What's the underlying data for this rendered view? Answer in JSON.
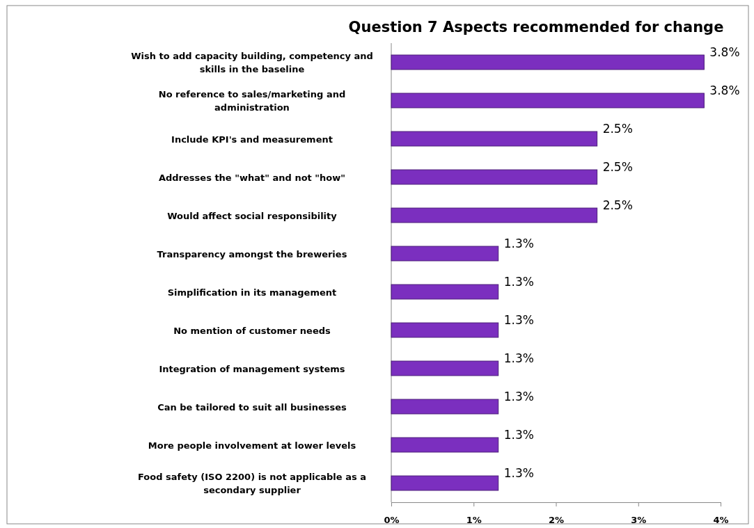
{
  "chart_data": {
    "type": "bar",
    "orientation": "horizontal",
    "title": "Question 7 Aspects recommended for change",
    "categories": [
      "Wish to add capacity building, competency and skills in the baseline",
      "No reference to sales/marketing and administration",
      "Include KPI's and measurement",
      "Addresses the \"what\" and not \"how\"",
      "Would affect social responsibility",
      "Transparency amongst the breweries",
      "Simplification in its management",
      "No mention of customer needs",
      "Integration of management systems",
      "Can be tailored to suit all businesses",
      "More people involvement at lower levels",
      "Food safety (ISO 2200) is not applicable as a secondary supplier"
    ],
    "values": [
      3.8,
      3.8,
      2.5,
      2.5,
      2.5,
      1.3,
      1.3,
      1.3,
      1.3,
      1.3,
      1.3,
      1.3
    ],
    "value_labels": [
      "3.8%",
      "3.8%",
      "2.5%",
      "2.5%",
      "2.5%",
      "1.3%",
      "1.3%",
      "1.3%",
      "1.3%",
      "1.3%",
      "1.3%",
      "1.3%"
    ],
    "color": "#7b2fbf",
    "xlim": [
      0,
      4
    ],
    "xticks": [
      {
        "value": 0,
        "label": "0%"
      },
      {
        "value": 1,
        "label": "1%"
      },
      {
        "value": 2,
        "label": "2%"
      },
      {
        "value": 3,
        "label": "3%"
      },
      {
        "value": 4,
        "label": "4%"
      }
    ],
    "grid": false
  }
}
